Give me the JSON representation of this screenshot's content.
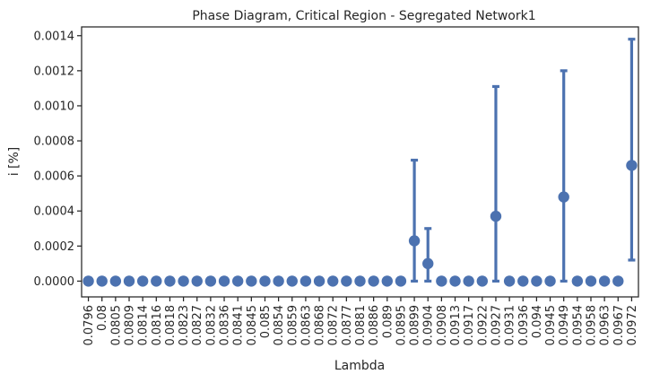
{
  "chart_data": {
    "type": "scatter",
    "title": "Phase Diagram, Critical Region - Segregated Network1",
    "xlabel": "Lambda",
    "ylabel": "i [%]",
    "ylim": [
      -9e-05,
      0.00145
    ],
    "yticks": [
      0.0,
      0.0002,
      0.0004,
      0.0006,
      0.0008,
      0.001,
      0.0012,
      0.0014
    ],
    "ytick_labels": [
      "0.0000",
      "0.0002",
      "0.0004",
      "0.0006",
      "0.0008",
      "0.0010",
      "0.0012",
      "0.0014"
    ],
    "grid": false,
    "color": "#4c72b0",
    "categories": [
      "0.0796",
      "0.08",
      "0.0805",
      "0.0809",
      "0.0814",
      "0.0816",
      "0.0818",
      "0.0823",
      "0.0827",
      "0.0832",
      "0.0836",
      "0.0841",
      "0.0845",
      "0.085",
      "0.0854",
      "0.0859",
      "0.0863",
      "0.0868",
      "0.0872",
      "0.0877",
      "0.0881",
      "0.0886",
      "0.089",
      "0.0895",
      "0.0899",
      "0.0904",
      "0.0908",
      "0.0913",
      "0.0917",
      "0.0922",
      "0.0927",
      "0.0931",
      "0.0936",
      "0.094",
      "0.0945",
      "0.0949",
      "0.0954",
      "0.0958",
      "0.0963",
      "0.0967",
      "0.0972"
    ],
    "values": [
      0,
      0,
      0,
      0,
      0,
      0,
      0,
      0,
      0,
      0,
      0,
      0,
      0,
      0,
      0,
      0,
      0,
      0,
      0,
      0,
      0,
      0,
      0,
      0,
      0.00023,
      0.0001,
      0,
      0,
      0,
      0,
      0.00037,
      0,
      0,
      0,
      0,
      0.00048,
      0,
      0,
      0,
      0,
      0.00066
    ],
    "error_low": [
      0,
      0,
      0,
      0,
      0,
      0,
      0,
      0,
      0,
      0,
      0,
      0,
      0,
      0,
      0,
      0,
      0,
      0,
      0,
      0,
      0,
      0,
      0,
      0,
      0,
      0,
      0,
      0,
      0,
      0,
      0,
      0,
      0,
      0,
      0,
      0,
      0,
      0,
      0,
      0,
      0.00012
    ],
    "error_high": [
      0,
      0,
      0,
      0,
      0,
      0,
      0,
      0,
      0,
      0,
      0,
      0,
      0,
      0,
      0,
      0,
      0,
      0,
      0,
      0,
      0,
      0,
      0,
      0,
      0.00069,
      0.0003,
      0,
      0,
      0,
      0,
      0.00111,
      0,
      0,
      0,
      0,
      0.0012,
      0,
      0,
      0,
      0,
      0.00138
    ]
  }
}
